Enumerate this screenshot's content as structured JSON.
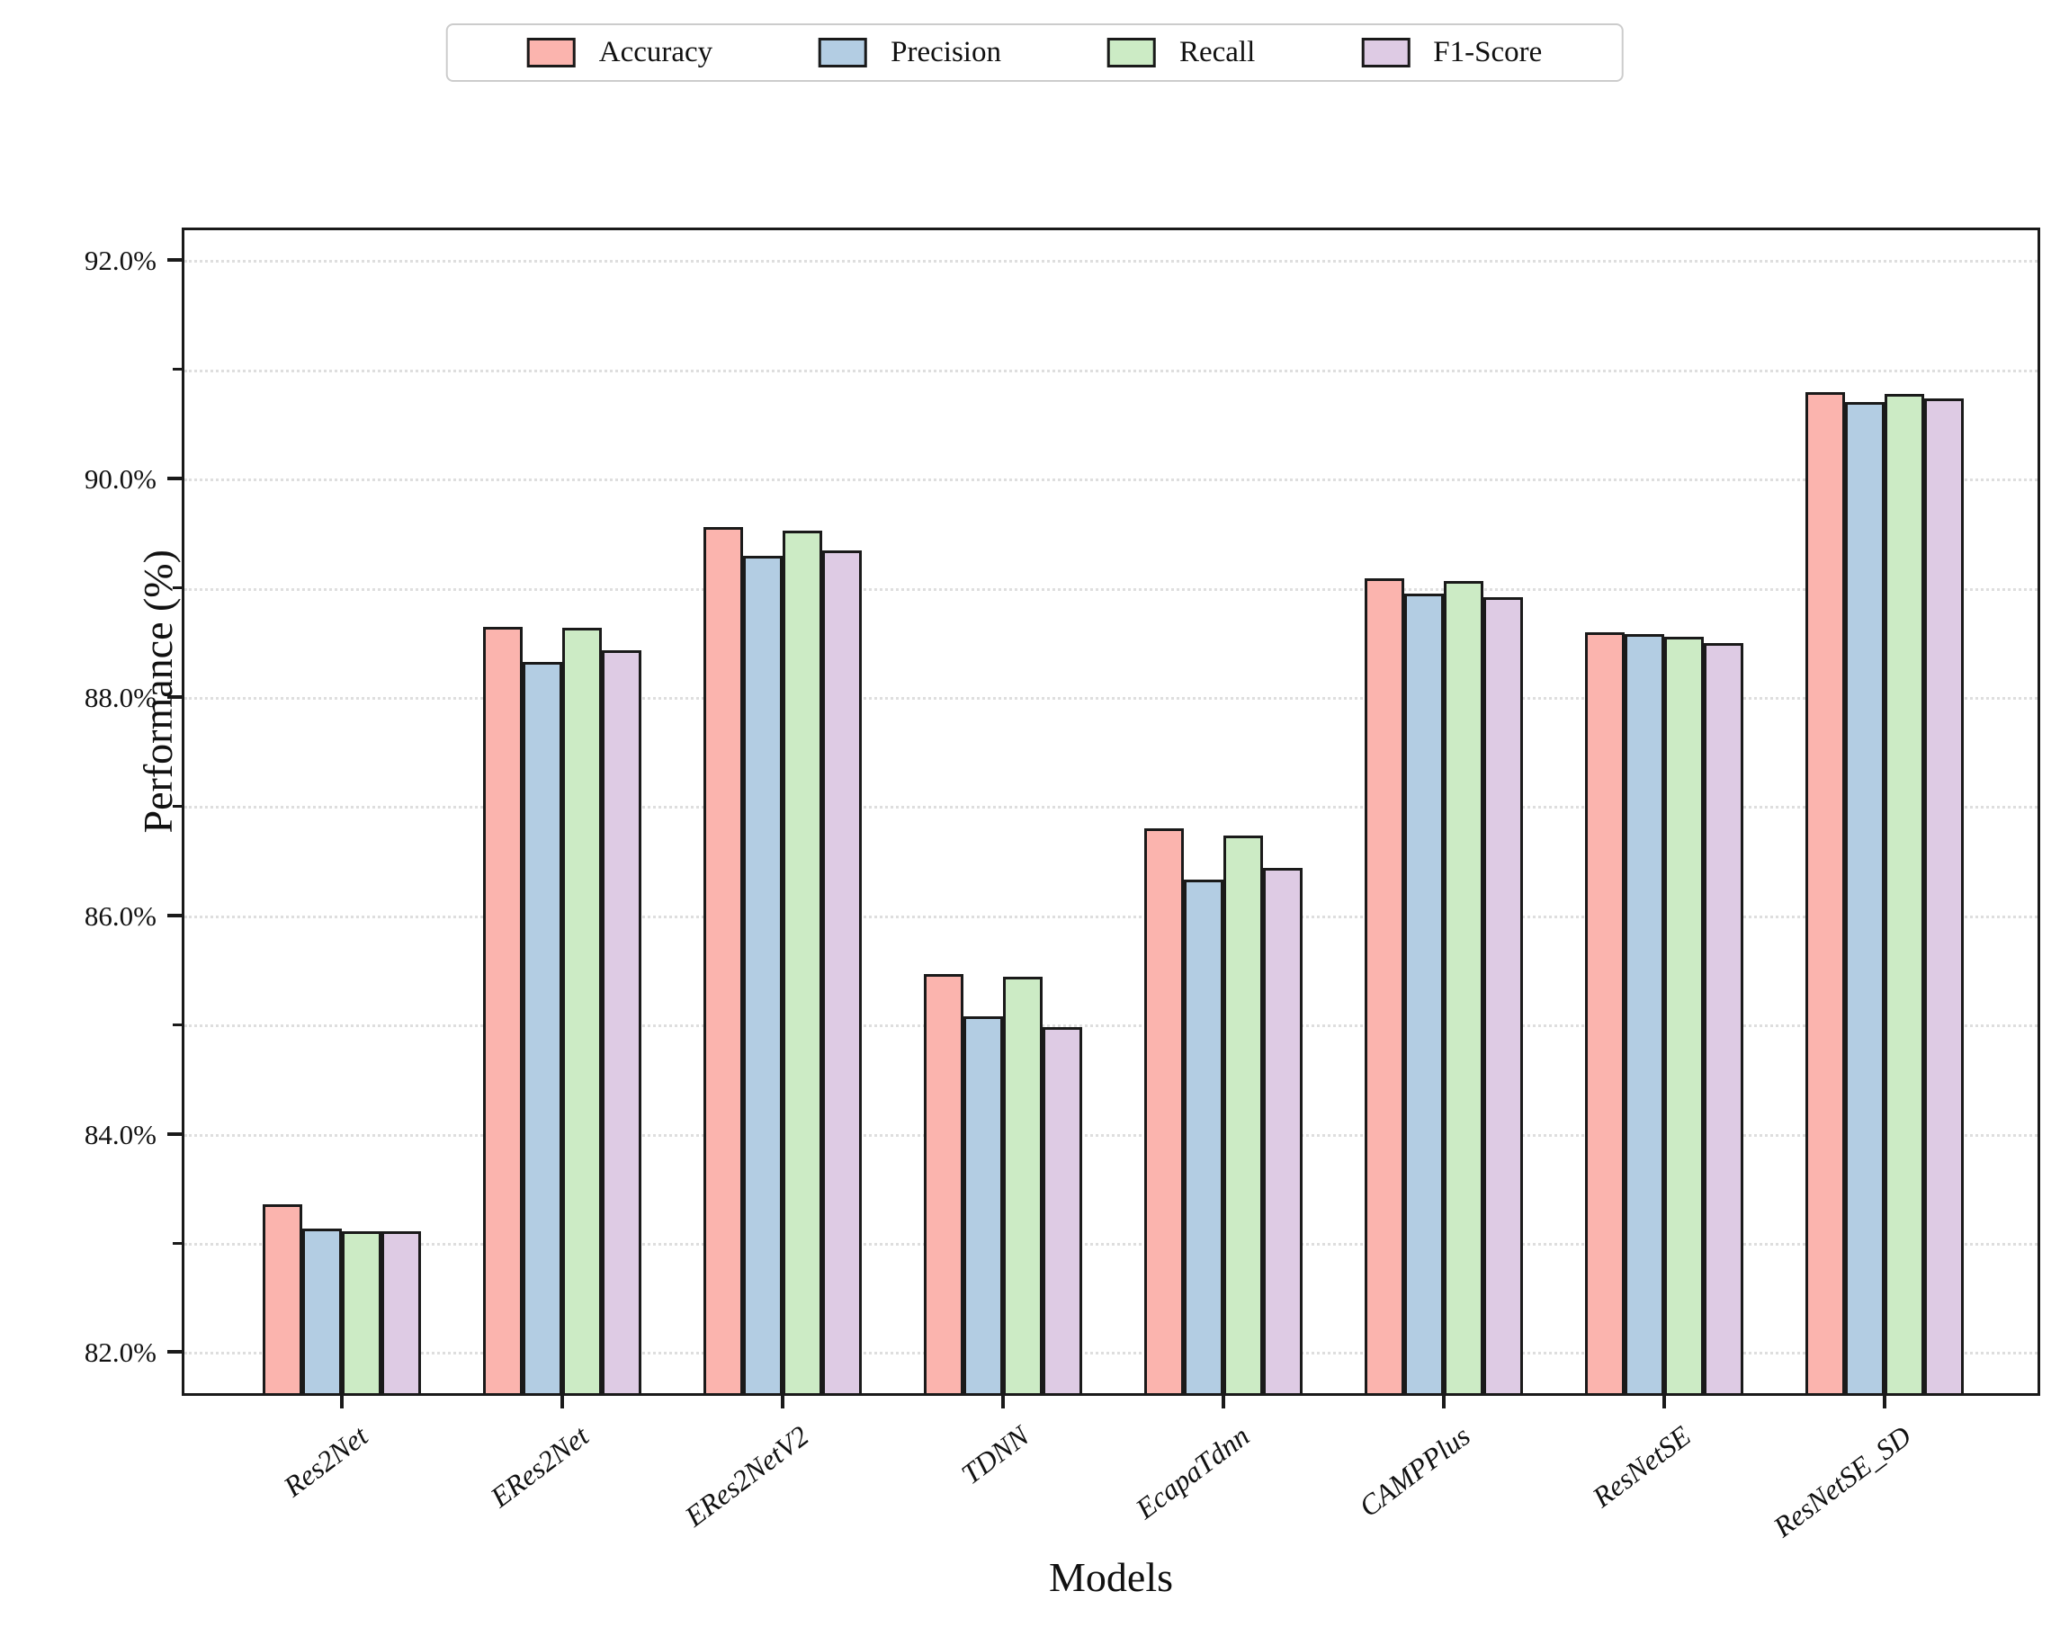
{
  "chart_data": {
    "type": "bar",
    "title": "",
    "xlabel": "Models",
    "ylabel": "Performance (%)",
    "categories": [
      "Res2Net",
      "ERes2Net",
      "ERes2NetV2",
      "TDNN",
      "EcapaTdnn",
      "CAMPPlus",
      "ResNetSE",
      "ResNetSE_SD"
    ],
    "series": [
      {
        "name": "Accuracy",
        "color": "#FBB4AE",
        "values": [
          83.33,
          88.62,
          89.53,
          85.44,
          86.77,
          89.06,
          88.57,
          90.77
        ]
      },
      {
        "name": "Precision",
        "color": "#B3CDE3",
        "values": [
          83.11,
          88.3,
          89.27,
          85.05,
          86.3,
          88.92,
          88.55,
          90.68
        ]
      },
      {
        "name": "Recall",
        "color": "#CCEBC5",
        "values": [
          83.08,
          88.61,
          89.5,
          85.41,
          86.71,
          89.04,
          88.53,
          90.75
        ]
      },
      {
        "name": "F1-Score",
        "color": "#DECBE4",
        "values": [
          83.08,
          88.4,
          89.32,
          84.95,
          86.41,
          88.89,
          88.47,
          90.71
        ]
      }
    ],
    "ylim": [
      81.6,
      92.3
    ],
    "yticks": {
      "values": [
        82,
        84,
        86,
        88,
        90,
        92
      ],
      "labels": [
        "82.0%",
        "84.0%",
        "86.0%",
        "88.0%",
        "90.0%",
        "92.0%"
      ]
    },
    "yticks_minor": [
      83,
      85,
      87,
      89,
      91
    ],
    "grid": "horizontal-dotted-every-1-percent",
    "legend_position": "top-center",
    "colors": {
      "bar_edge": "#1a1a1a",
      "axis": "#1a1a1a",
      "gridline": "#dedede",
      "legend_border": "#cccccc",
      "background": "#ffffff"
    }
  }
}
